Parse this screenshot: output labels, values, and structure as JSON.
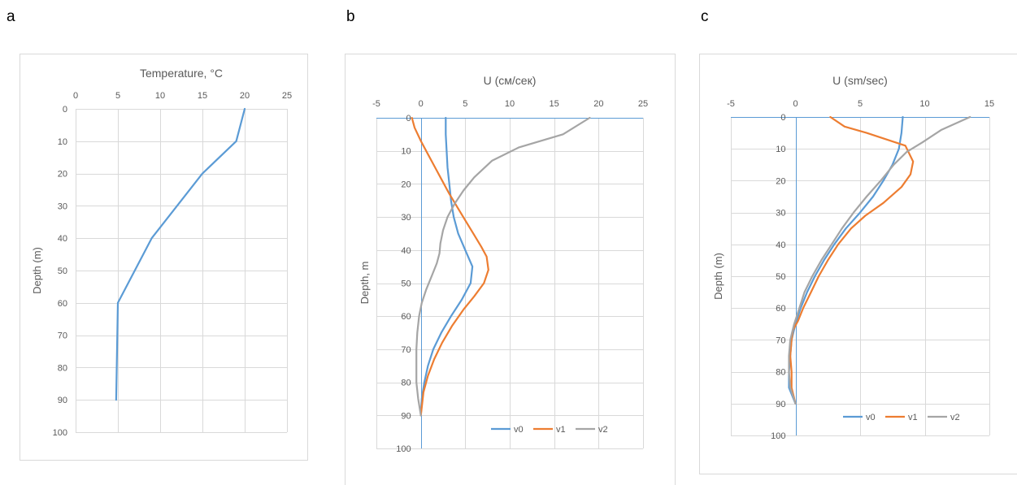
{
  "panel_labels": [
    "a",
    "b",
    "c"
  ],
  "colors": {
    "v0": "#5b9bd5",
    "v1": "#ed7d31",
    "v2": "#a5a5a5",
    "grid": "#d9d9d9",
    "frame": "#d9d9d9",
    "tick_text": "#595959"
  },
  "chart_data": [
    {
      "type": "line",
      "title": "Temperature, °C",
      "ylabel": "Depth (m)",
      "xlim": [
        0,
        25
      ],
      "ylim": [
        0,
        100
      ],
      "x_ticks": [
        "0",
        "5",
        "10",
        "15",
        "20",
        "25"
      ],
      "y_ticks": [
        "0",
        "10",
        "20",
        "30",
        "40",
        "50",
        "60",
        "70",
        "80",
        "90",
        "100"
      ],
      "grid": true,
      "legend": "none",
      "series": [
        {
          "key": "v0",
          "points": [
            [
              20,
              0
            ],
            [
              19,
              10
            ],
            [
              15,
              20
            ],
            [
              9,
              40
            ],
            [
              5,
              60
            ],
            [
              4.8,
              90
            ]
          ]
        }
      ]
    },
    {
      "type": "line",
      "title": "U (см/сек)",
      "ylabel": "Depth, m",
      "xlim": [
        -5,
        25
      ],
      "ylim": [
        0,
        100
      ],
      "x_ticks": [
        "-5",
        "0",
        "5",
        "10",
        "15",
        "20",
        "25"
      ],
      "y_ticks": [
        "0",
        "10",
        "20",
        "30",
        "40",
        "50",
        "60",
        "70",
        "80",
        "90",
        "100"
      ],
      "grid": true,
      "legend": "bottom-right",
      "series": [
        {
          "name": "v0",
          "key": "v0",
          "points": [
            [
              2.8,
              0
            ],
            [
              2.8,
              5
            ],
            [
              2.9,
              10
            ],
            [
              3,
              15
            ],
            [
              3.2,
              20
            ],
            [
              3.4,
              25
            ],
            [
              3.7,
              30
            ],
            [
              4.2,
              35
            ],
            [
              5,
              40
            ],
            [
              5.8,
              45
            ],
            [
              5.6,
              50
            ],
            [
              4.6,
              55
            ],
            [
              3.4,
              60
            ],
            [
              2.3,
              65
            ],
            [
              1.4,
              70
            ],
            [
              0.8,
              75
            ],
            [
              0.4,
              80
            ],
            [
              0.1,
              85
            ],
            [
              0,
              90
            ]
          ]
        },
        {
          "name": "v1",
          "key": "v1",
          "points": [
            [
              -1,
              0
            ],
            [
              -0.7,
              3
            ],
            [
              0,
              7
            ],
            [
              0.8,
              11
            ],
            [
              1.6,
              15
            ],
            [
              2.4,
              19
            ],
            [
              3.2,
              23
            ],
            [
              4.1,
              27
            ],
            [
              5,
              31
            ],
            [
              5.9,
              35
            ],
            [
              6.8,
              39
            ],
            [
              7.4,
              42
            ],
            [
              7.6,
              46
            ],
            [
              7.1,
              50
            ],
            [
              6,
              54
            ],
            [
              4.8,
              58
            ],
            [
              3.5,
              63
            ],
            [
              2.4,
              68
            ],
            [
              1.5,
              73
            ],
            [
              0.8,
              78
            ],
            [
              0.3,
              83
            ],
            [
              0,
              90
            ]
          ]
        },
        {
          "name": "v2",
          "key": "v2",
          "points": [
            [
              19,
              0
            ],
            [
              16,
              5
            ],
            [
              11,
              9
            ],
            [
              8,
              13
            ],
            [
              6,
              18
            ],
            [
              4.8,
              22
            ],
            [
              3.8,
              26
            ],
            [
              3,
              30
            ],
            [
              2.5,
              34
            ],
            [
              2.2,
              38
            ],
            [
              2.1,
              41
            ],
            [
              1.8,
              44
            ],
            [
              1.2,
              48
            ],
            [
              0.6,
              52
            ],
            [
              0.1,
              56
            ],
            [
              -0.2,
              60
            ],
            [
              -0.4,
              65
            ],
            [
              -0.5,
              70
            ],
            [
              -0.5,
              75
            ],
            [
              -0.5,
              80
            ],
            [
              -0.3,
              85
            ],
            [
              0,
              90
            ]
          ]
        }
      ]
    },
    {
      "type": "line",
      "title": "U (sm/sec)",
      "ylabel": "Depth (m)",
      "xlim": [
        -5,
        15
      ],
      "ylim": [
        0,
        100
      ],
      "x_ticks": [
        "-5",
        "0",
        "5",
        "10",
        "15"
      ],
      "y_ticks": [
        "0",
        "10",
        "20",
        "30",
        "40",
        "50",
        "60",
        "70",
        "80",
        "90",
        "100"
      ],
      "grid": true,
      "legend": "bottom-right",
      "series": [
        {
          "name": "v0",
          "key": "v0",
          "points": [
            [
              8.3,
              0
            ],
            [
              8.2,
              5
            ],
            [
              8,
              10
            ],
            [
              7.5,
              15
            ],
            [
              6.8,
              20
            ],
            [
              6,
              25
            ],
            [
              5,
              30
            ],
            [
              3.9,
              35
            ],
            [
              3,
              40
            ],
            [
              2.2,
              45
            ],
            [
              1.5,
              50
            ],
            [
              0.9,
              55
            ],
            [
              0.4,
              60
            ],
            [
              0,
              65
            ],
            [
              -0.3,
              70
            ],
            [
              -0.4,
              75
            ],
            [
              -0.5,
              80
            ],
            [
              -0.5,
              85
            ],
            [
              0,
              90
            ]
          ]
        },
        {
          "name": "v1",
          "key": "v1",
          "points": [
            [
              2.7,
              0
            ],
            [
              3.8,
              3
            ],
            [
              5.5,
              5
            ],
            [
              8.5,
              9
            ],
            [
              9.1,
              14
            ],
            [
              8.9,
              18
            ],
            [
              8.2,
              22
            ],
            [
              6.8,
              27
            ],
            [
              5.4,
              31
            ],
            [
              4.3,
              35
            ],
            [
              3.3,
              40
            ],
            [
              2.5,
              45
            ],
            [
              1.8,
              50
            ],
            [
              1.2,
              55
            ],
            [
              0.6,
              60
            ],
            [
              0.2,
              64
            ],
            [
              -0.2,
              67
            ],
            [
              -0.3,
              70
            ],
            [
              -0.4,
              75
            ],
            [
              -0.3,
              80
            ],
            [
              -0.3,
              85
            ],
            [
              0,
              90
            ]
          ]
        },
        {
          "name": "v2",
          "key": "v2",
          "points": [
            [
              13.5,
              0
            ],
            [
              11.3,
              4
            ],
            [
              9.8,
              8
            ],
            [
              8.6,
              11
            ],
            [
              7.6,
              15
            ],
            [
              6.6,
              20
            ],
            [
              5.5,
              25
            ],
            [
              4.5,
              30
            ],
            [
              3.6,
              35
            ],
            [
              2.8,
              40
            ],
            [
              2,
              45
            ],
            [
              1.3,
              50
            ],
            [
              0.7,
              55
            ],
            [
              0.3,
              60
            ],
            [
              -0.1,
              65
            ],
            [
              -0.4,
              70
            ],
            [
              -0.5,
              75
            ],
            [
              -0.5,
              80
            ],
            [
              -0.4,
              85
            ],
            [
              0,
              90
            ]
          ]
        }
      ]
    }
  ]
}
